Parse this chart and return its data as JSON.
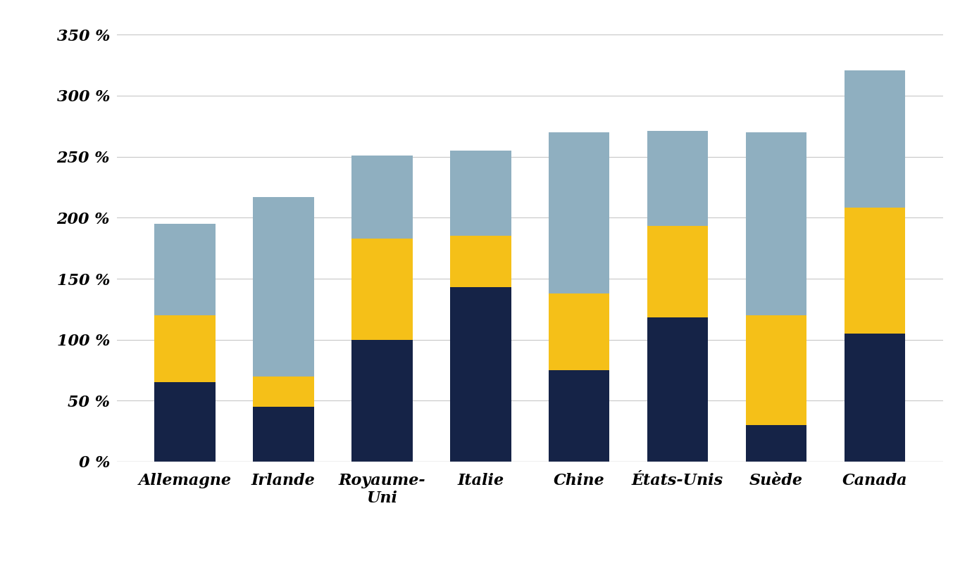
{
  "categories": [
    "Allemagne",
    "Irlande",
    "Royaume-\nUni",
    "Italie",
    "Chine",
    "États-Unis",
    "Suède",
    "Canada"
  ],
  "dark_blue": [
    65,
    45,
    100,
    143,
    75,
    118,
    30,
    105
  ],
  "yellow": [
    55,
    25,
    83,
    42,
    63,
    75,
    90,
    103
  ],
  "light_blue": [
    75,
    147,
    68,
    70,
    132,
    78,
    150,
    113
  ],
  "color_dark_blue": "#152347",
  "color_yellow": "#f5c018",
  "color_light_blue": "#8fafc0",
  "ylim": [
    0,
    360
  ],
  "yticks": [
    0,
    50,
    100,
    150,
    200,
    250,
    300,
    350
  ],
  "ytick_labels": [
    "0 %",
    "50 %",
    "100 %",
    "150 %",
    "200 %",
    "250 %",
    "300 %",
    "350 %"
  ],
  "background_color": "#ffffff",
  "grid_color": "#c8c8c8",
  "bar_width": 0.62,
  "figsize": [
    13.8,
    8.0
  ],
  "dpi": 100
}
